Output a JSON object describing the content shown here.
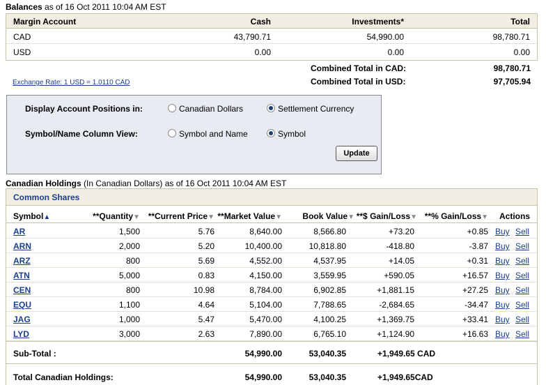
{
  "balances": {
    "title_bold": "Balances",
    "title_rest": " as of 16 Oct 2011 10:04 AM EST",
    "headers": {
      "account": "Margin Account",
      "cash": "Cash",
      "investments": "Investments*",
      "total": "Total"
    },
    "rows": [
      {
        "currency": "CAD",
        "cash": "43,790.71",
        "investments": "54,990.00",
        "total": "98,780.71"
      },
      {
        "currency": "USD",
        "cash": "0.00",
        "investments": "0.00",
        "total": "0.00"
      }
    ],
    "combined_cad_label": "Combined Total in CAD:",
    "combined_cad_value": "98,780.71",
    "combined_usd_label": "Combined Total in USD:",
    "combined_usd_value": "97,705.94"
  },
  "exchange_rate": "Exchange Rate: 1 USD = 1.0110 CAD",
  "options": {
    "positions_label": "Display Account Positions in:",
    "positions_opt1": "Canadian Dollars",
    "positions_opt2": "Settlement Currency",
    "positions_selected": "Settlement Currency",
    "view_label": "Symbol/Name Column View:",
    "view_opt1": "Symbol and Name",
    "view_opt2": "Symbol",
    "view_selected": "Symbol",
    "update_label": "Update"
  },
  "holdings": {
    "title_bold": "Canadian Holdings",
    "title_rest": " (In Canadian Dollars) as of 16 Oct 2011 10:04 AM EST",
    "section": "Common Shares",
    "headers": {
      "symbol": "Symbol",
      "quantity": "**Quantity",
      "price": "**Current Price",
      "market": "**Market Value",
      "book": "Book Value",
      "gain_usd": "**$ Gain/Loss",
      "gain_pct": "**% Gain/Loss",
      "actions": "Actions"
    },
    "buy_label": "Buy",
    "sell_label": "Sell",
    "rows": [
      {
        "symbol": "AR",
        "quantity": "1,500",
        "price": "5.76",
        "market": "8,640.00",
        "book": "8,566.80",
        "gain": "+73.20",
        "pct": "+0.85"
      },
      {
        "symbol": "ARN",
        "quantity": "2,000",
        "price": "5.20",
        "market": "10,400.00",
        "book": "10,818.80",
        "gain": "-418.80",
        "pct": "-3.87"
      },
      {
        "symbol": "ARZ",
        "quantity": "800",
        "price": "5.69",
        "market": "4,552.00",
        "book": "4,537.95",
        "gain": "+14.05",
        "pct": "+0.31"
      },
      {
        "symbol": "ATN",
        "quantity": "5,000",
        "price": "0.83",
        "market": "4,150.00",
        "book": "3,559.95",
        "gain": "+590.05",
        "pct": "+16.57"
      },
      {
        "symbol": "CEN",
        "quantity": "800",
        "price": "10.98",
        "market": "8,784.00",
        "book": "6,902.85",
        "gain": "+1,881.15",
        "pct": "+27.25"
      },
      {
        "symbol": "EQU",
        "quantity": "1,100",
        "price": "4.64",
        "market": "5,104.00",
        "book": "7,788.65",
        "gain": "-2,684.65",
        "pct": "-34.47"
      },
      {
        "symbol": "JAG",
        "quantity": "1,000",
        "price": "5.47",
        "market": "5,470.00",
        "book": "4,100.25",
        "gain": "+1,369.75",
        "pct": "+33.41"
      },
      {
        "symbol": "LYD",
        "quantity": "3,000",
        "price": "2.63",
        "market": "7,890.00",
        "book": "6,765.10",
        "gain": "+1,124.90",
        "pct": "+16.63"
      }
    ],
    "subtotal_label": "Sub-Total :",
    "subtotal_market": "54,990.00",
    "subtotal_book": "53,040.35",
    "subtotal_gain": "+1,949.65 CAD",
    "total_label": "Total Canadian Holdings:",
    "total_market": "54,990.00",
    "total_book": "53,040.35",
    "total_gain": "+1,949.65CAD"
  }
}
